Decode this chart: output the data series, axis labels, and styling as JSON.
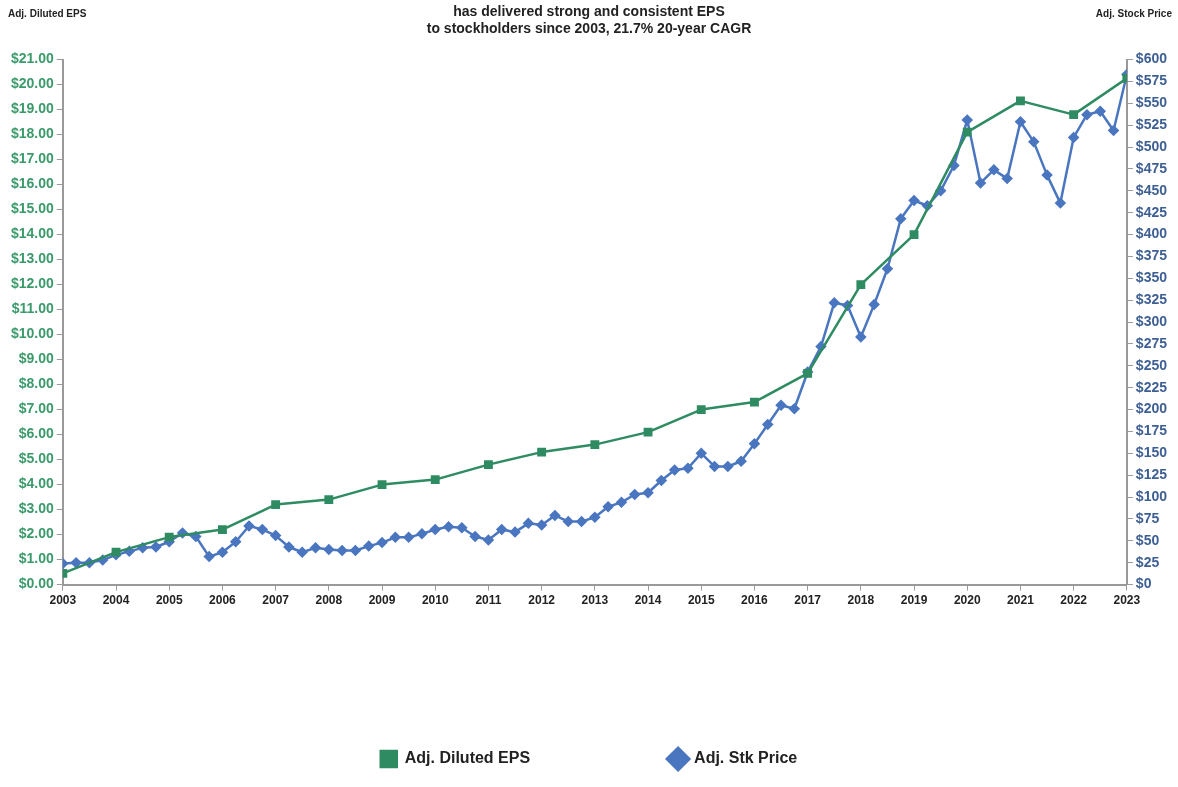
{
  "chart_data": {
    "type": "line",
    "title": "has delivered strong and consistent EPS\nto stockholders since 2003, 21.7% 20-year CAGR",
    "ylabel": "Adj. Diluted EPS",
    "y2label": "Adj. Stock Price",
    "legend": "bottom",
    "xlim": [
      2003,
      2023
    ],
    "xticks": [
      2003,
      2004,
      2005,
      2006,
      2007,
      2008,
      2009,
      2010,
      2011,
      2012,
      2013,
      2014,
      2015,
      2016,
      2017,
      2018,
      2019,
      2020,
      2021,
      2022,
      2023
    ],
    "ylim": [
      0,
      21
    ],
    "yticks": [
      {
        "value": 0,
        "label": "$0.00"
      },
      {
        "value": 1,
        "label": "$1.00"
      },
      {
        "value": 2,
        "label": "$2.00"
      },
      {
        "value": 3,
        "label": "$3.00"
      },
      {
        "value": 4,
        "label": "$4.00"
      },
      {
        "value": 5,
        "label": "$5.00"
      },
      {
        "value": 6,
        "label": "$6.00"
      },
      {
        "value": 7,
        "label": "$7.00"
      },
      {
        "value": 8,
        "label": "$8.00"
      },
      {
        "value": 9,
        "label": "$9.00"
      },
      {
        "value": 10,
        "label": "$10.00"
      },
      {
        "value": 11,
        "label": "$11.00"
      },
      {
        "value": 12,
        "label": "$12.00"
      },
      {
        "value": 13,
        "label": "$13.00"
      },
      {
        "value": 14,
        "label": "$14.00"
      },
      {
        "value": 15,
        "label": "$15.00"
      },
      {
        "value": 16,
        "label": "$16.00"
      },
      {
        "value": 17,
        "label": "$17.00"
      },
      {
        "value": 18,
        "label": "$18.00"
      },
      {
        "value": 19,
        "label": "$19.00"
      },
      {
        "value": 20,
        "label": "$20.00"
      },
      {
        "value": 21,
        "label": "$21.00"
      }
    ],
    "y2lim": [
      0,
      600
    ],
    "y2ticks": [
      {
        "value": 0,
        "label": "$0"
      },
      {
        "value": 25,
        "label": "$25"
      },
      {
        "value": 50,
        "label": "$50"
      },
      {
        "value": 75,
        "label": "$75"
      },
      {
        "value": 100,
        "label": "$100"
      },
      {
        "value": 125,
        "label": "$125"
      },
      {
        "value": 150,
        "label": "$150"
      },
      {
        "value": 175,
        "label": "$175"
      },
      {
        "value": 200,
        "label": "$200"
      },
      {
        "value": 225,
        "label": "$225"
      },
      {
        "value": 250,
        "label": "$250"
      },
      {
        "value": 275,
        "label": "$275"
      },
      {
        "value": 300,
        "label": "$300"
      },
      {
        "value": 325,
        "label": "$325"
      },
      {
        "value": 350,
        "label": "$350"
      },
      {
        "value": 375,
        "label": "$375"
      },
      {
        "value": 400,
        "label": "$400"
      },
      {
        "value": 425,
        "label": "$425"
      },
      {
        "value": 450,
        "label": "$450"
      },
      {
        "value": 475,
        "label": "$475"
      },
      {
        "value": 500,
        "label": "$500"
      },
      {
        "value": 525,
        "label": "$525"
      },
      {
        "value": 550,
        "label": "$550"
      },
      {
        "value": 575,
        "label": "$575"
      },
      {
        "value": 600,
        "label": "$600"
      }
    ],
    "series": [
      {
        "name": "Adj. Diluted EPS",
        "color": "#2e8b62",
        "marker": "square",
        "x": [
          2003,
          2004,
          2005,
          2006,
          2007,
          2008,
          2009,
          2010,
          2011,
          2012,
          2013,
          2014,
          2015,
          2016,
          2017,
          2018,
          2019,
          2020,
          2021,
          2022,
          2023
        ],
        "values": [
          0.45,
          1.3,
          1.9,
          2.2,
          3.2,
          3.4,
          4.0,
          4.2,
          4.8,
          5.3,
          5.6,
          6.1,
          7.0,
          7.3,
          8.45,
          12.0,
          14.0,
          18.1,
          19.35,
          18.8,
          20.25
        ]
      },
      {
        "name": "Adj. Stk Price",
        "color": "#4a76c0",
        "marker": "diamond",
        "axis": "y2",
        "x": [
          2003,
          2003.25,
          2003.5,
          2003.75,
          2004,
          2004.25,
          2004.5,
          2004.75,
          2005,
          2005.25,
          2005.5,
          2005.75,
          2006,
          2006.25,
          2006.5,
          2006.75,
          2007,
          2007.25,
          2007.5,
          2007.75,
          2008,
          2008.25,
          2008.5,
          2008.75,
          2009,
          2009.25,
          2009.5,
          2009.75,
          2010,
          2010.25,
          2010.5,
          2010.75,
          2011,
          2011.25,
          2011.5,
          2011.75,
          2012,
          2012.25,
          2012.5,
          2012.75,
          2013,
          2013.25,
          2013.5,
          2013.75,
          2014,
          2014.25,
          2014.5,
          2014.75,
          2015,
          2015.25,
          2015.5,
          2015.75,
          2016,
          2016.25,
          2016.5,
          2016.75,
          2017,
          2017.25,
          2017.5,
          2017.75,
          2018,
          2018.25,
          2018.5,
          2018.75,
          2019,
          2019.25,
          2019.5,
          2019.75,
          2020,
          2020.25,
          2020.5,
          2020.75,
          2021,
          2021.25,
          2021.5,
          2021.75,
          2022,
          2022.25,
          2022.5,
          2022.75,
          2023
        ],
        "values": [
          24,
          25,
          25,
          28,
          34,
          38,
          42,
          43,
          49,
          59,
          55,
          32,
          37,
          49,
          67,
          63,
          56,
          43,
          37,
          42,
          40,
          39,
          39,
          44,
          48,
          54,
          54,
          58,
          63,
          66,
          65,
          55,
          51,
          63,
          60,
          70,
          68,
          79,
          72,
          72,
          77,
          89,
          94,
          103,
          105,
          119,
          131,
          133,
          150,
          135,
          135,
          141,
          161,
          183,
          205,
          201,
          243,
          272,
          322,
          319,
          283,
          320,
          361,
          418,
          439,
          433,
          450,
          479,
          531,
          459,
          474,
          464,
          529,
          506,
          468,
          436,
          511,
          537,
          541,
          519,
          583
        ]
      }
    ]
  }
}
